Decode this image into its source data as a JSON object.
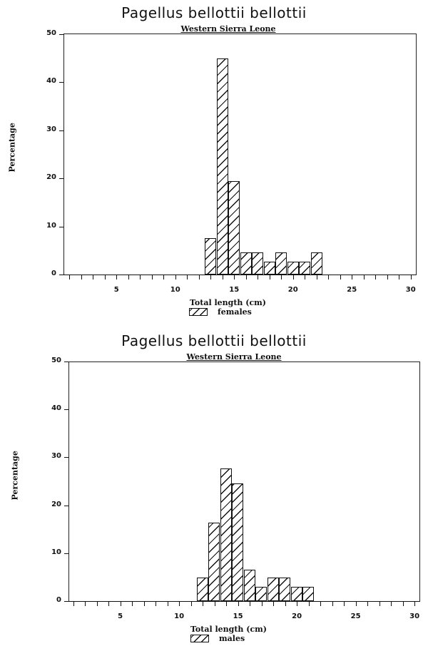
{
  "chart_data": [
    {
      "type": "bar",
      "title": "Pagellus bellottii bellottii",
      "subtitle": "Western Sierra Leone",
      "xlabel": "Total length (cm)",
      "ylabel": "Percentage",
      "legend": [
        "females"
      ],
      "legend_position": "bottom",
      "grid": false,
      "xlim": [
        0.5,
        30.5
      ],
      "ylim": [
        0,
        50
      ],
      "x_ticks": [
        5,
        10,
        15,
        20,
        25,
        30
      ],
      "y_ticks": [
        0,
        10,
        20,
        30,
        40,
        50
      ],
      "categories": [
        13,
        14,
        15,
        16,
        17,
        18,
        19,
        20,
        21,
        22
      ],
      "values": [
        7.6,
        45.0,
        19.4,
        4.6,
        4.6,
        2.7,
        4.6,
        2.7,
        2.7,
        4.6
      ]
    },
    {
      "type": "bar",
      "title": "Pagellus bellottii bellottii",
      "subtitle": "Western Sierra Leone",
      "xlabel": "Total length (cm)",
      "ylabel": "Percentage",
      "legend": [
        "males"
      ],
      "legend_position": "bottom",
      "grid": false,
      "xlim": [
        0.5,
        30.5
      ],
      "ylim": [
        0,
        50
      ],
      "x_ticks": [
        5,
        10,
        15,
        20,
        25,
        30
      ],
      "y_ticks": [
        0,
        10,
        20,
        30,
        40,
        50
      ],
      "categories": [
        12,
        13,
        14,
        15,
        16,
        17,
        18,
        19,
        20,
        21
      ],
      "values": [
        4.9,
        16.4,
        27.7,
        24.6,
        6.5,
        3.0,
        4.9,
        4.9,
        3.0,
        3.0
      ]
    }
  ],
  "charts": [
    {
      "title": "Pagellus bellottii bellottii",
      "subtitle": "Western Sierra Leone",
      "xlabel": "Total length (cm)",
      "ylabel": "Percentage",
      "legend_label": "females",
      "y_tick_labels": [
        "0",
        "10",
        "20",
        "30",
        "40",
        "50"
      ],
      "x_tick_labels": [
        "5",
        "10",
        "15",
        "20",
        "25",
        "30"
      ]
    },
    {
      "title": "Pagellus bellottii bellottii",
      "subtitle": "Western Sierra Leone",
      "xlabel": "Total length (cm)",
      "ylabel": "Percentage",
      "legend_label": "males",
      "y_tick_labels": [
        "0",
        "10",
        "20",
        "30",
        "40",
        "50"
      ],
      "x_tick_labels": [
        "5",
        "10",
        "15",
        "20",
        "25",
        "30"
      ]
    }
  ]
}
